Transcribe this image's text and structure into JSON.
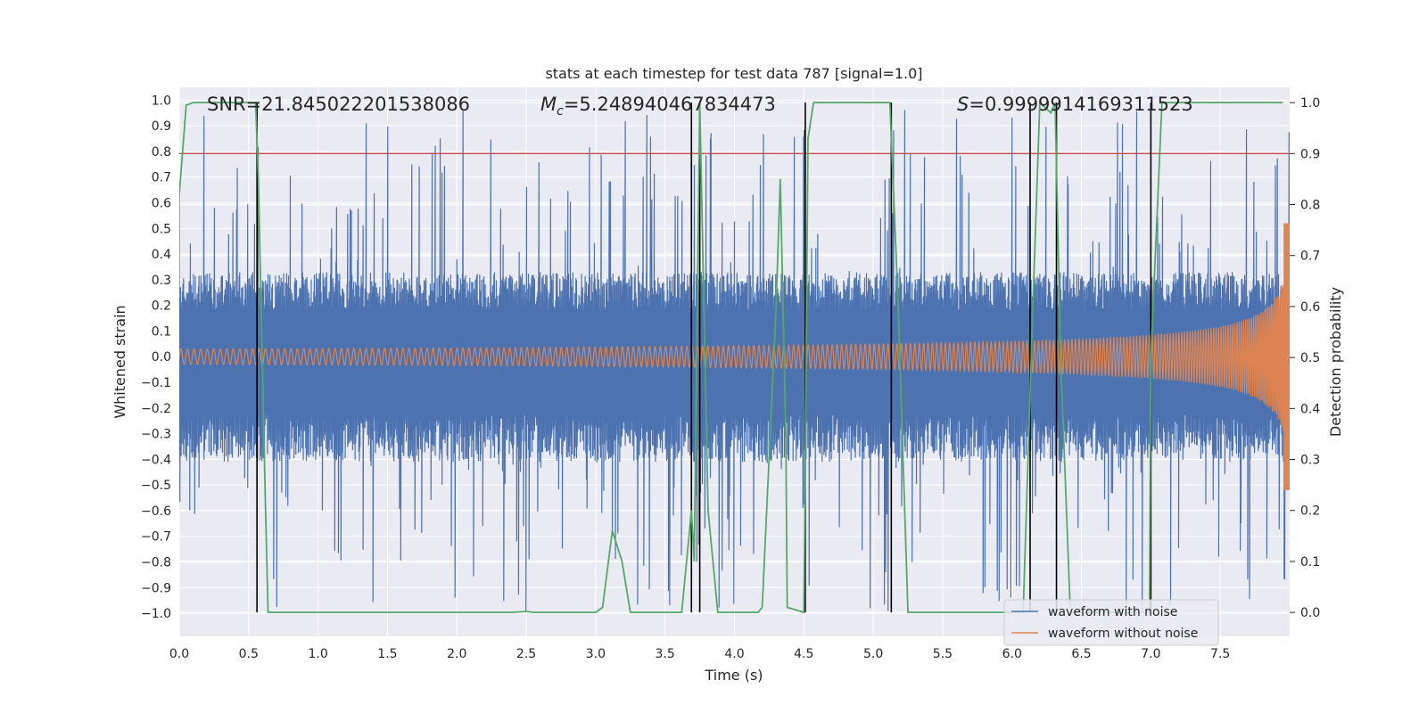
{
  "chart_data": {
    "type": "line",
    "title": "stats at each timestep for test data 787 [signal=1.0]",
    "xlabel": "Time (s)",
    "ylabel": "Whitened strain",
    "y2label": "Detection probability",
    "xlim": [
      0.0,
      8.0
    ],
    "ylim": [
      -1.09,
      1.05
    ],
    "y2lim": [
      -0.047,
      1.03
    ],
    "x_ticks": [
      0.0,
      0.5,
      1.0,
      1.5,
      2.0,
      2.5,
      3.0,
      3.5,
      4.0,
      4.5,
      5.0,
      5.5,
      6.0,
      6.5,
      7.0,
      7.5
    ],
    "x_tick_labels": [
      "0.0",
      "0.5",
      "1.0",
      "1.5",
      "2.0",
      "2.5",
      "3.0",
      "3.5",
      "4.0",
      "4.5",
      "5.0",
      "5.5",
      "6.0",
      "6.5",
      "7.0",
      "7.5"
    ],
    "y_ticks": [
      1.0,
      0.9,
      0.8,
      0.7,
      0.6,
      0.5,
      0.4,
      0.3,
      0.2,
      0.1,
      0.0,
      -0.1,
      -0.2,
      -0.3,
      -0.4,
      -0.5,
      -0.6,
      -0.7,
      -0.8,
      -0.9,
      -1.0
    ],
    "y_tick_labels": [
      "1.0",
      "0.9",
      "0.8",
      "0.7",
      "0.6",
      "0.5",
      "0.4",
      "0.3",
      "0.2",
      "0.1",
      "0.0",
      "−0.1",
      "−0.2",
      "−0.3",
      "−0.4",
      "−0.5",
      "−0.6",
      "−0.7",
      "−0.8",
      "−0.9",
      "−1.0"
    ],
    "y2_ticks": [
      1.0,
      0.9,
      0.8,
      0.7,
      0.6,
      0.5,
      0.4,
      0.3,
      0.2,
      0.1,
      0.0
    ],
    "y2_tick_labels": [
      "1.0",
      "0.9",
      "0.8",
      "0.7",
      "0.6",
      "0.5",
      "0.4",
      "0.3",
      "0.2",
      "0.1",
      "0.0"
    ],
    "annotations": {
      "snr": "SNR=21.845022201538086",
      "mc_symbol": "M",
      "mc_subscript": "c",
      "mc_value": "=5.248940467834473",
      "s_symbol": "S",
      "s_value": "=0.9999914169311523"
    },
    "threshold_line": {
      "axis": "y2",
      "value": 0.9,
      "color": "#c44e52"
    },
    "event_lines_x": [
      0.56,
      3.69,
      3.75,
      4.51,
      5.13,
      6.13,
      6.32,
      7.0
    ],
    "event_line_color": "#000000",
    "series": [
      {
        "name": "waveform with noise",
        "color": "#4c72b0",
        "axis": "y",
        "envelope": {
          "baseline_upper": 0.33,
          "baseline_lower": -0.41,
          "spike_max": 0.97,
          "spike_min": -1.0
        }
      },
      {
        "name": "waveform without noise",
        "color": "#dd8452",
        "axis": "y",
        "amplitude_start": 0.03,
        "amplitude_end": 0.52,
        "coalescence_time": 8.0
      },
      {
        "name": "detection probability",
        "color": "#55a868",
        "axis": "y2",
        "x": [
          0.0,
          0.05,
          0.1,
          0.55,
          0.57,
          0.62,
          0.64,
          0.7,
          1.0,
          2.4,
          2.5,
          2.55,
          3.0,
          3.05,
          3.12,
          3.19,
          3.25,
          3.62,
          3.69,
          3.71,
          3.75,
          3.81,
          3.88,
          4.17,
          4.2,
          4.3,
          4.33,
          4.37,
          4.38,
          4.5,
          4.51,
          4.53,
          4.57,
          4.62,
          5.12,
          5.13,
          5.18,
          5.25,
          5.3,
          6.08,
          6.15,
          6.2,
          6.28,
          6.31,
          6.35,
          6.42,
          6.45,
          6.5,
          6.99,
          7.0,
          7.08,
          7.1,
          7.95
        ],
        "values": [
          0.82,
          0.995,
          1.0,
          1.0,
          0.85,
          0.22,
          0.0,
          0.0,
          0.0,
          0.0,
          0.002,
          0.0,
          0.0,
          0.01,
          0.16,
          0.1,
          0.0,
          0.0,
          0.2,
          0.1,
          1.0,
          0.2,
          0.0,
          0.0,
          0.01,
          0.6,
          0.85,
          0.35,
          0.01,
          0.0,
          0.3,
          0.93,
          1.0,
          1.0,
          1.0,
          0.93,
          0.6,
          0.0,
          0.0,
          0.0,
          0.6,
          1.0,
          0.98,
          1.0,
          0.5,
          0.0,
          0.0,
          0.0,
          0.0,
          0.5,
          1.0,
          1.0,
          1.0
        ]
      }
    ],
    "legend": {
      "position": "lower-right",
      "entries": [
        {
          "label": "waveform with noise",
          "color": "#4c72b0"
        },
        {
          "label": "waveform without noise",
          "color": "#dd8452"
        }
      ]
    },
    "grid": true,
    "style": {
      "axes_background": "#eaeaf2",
      "grid_color": "#ffffff"
    }
  }
}
